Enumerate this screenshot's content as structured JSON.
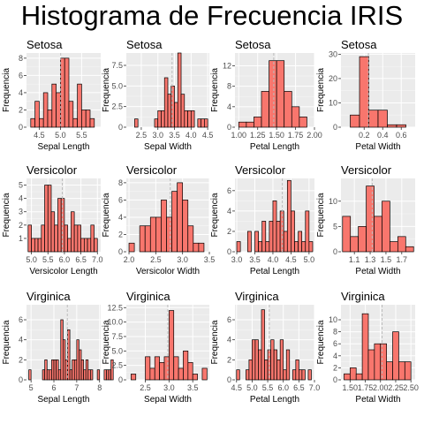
{
  "title": "Histograma de Frecuencia IRIS",
  "colors": {
    "bar_fill": "#F8766D",
    "bar_stroke": "#000000",
    "panel_bg": "#EBEBEB",
    "grid_major": "#FFFFFF",
    "grid_minor": "#F5F5F5",
    "mean_line": "#BBBBBB"
  },
  "chart_data": [
    {
      "type": "bar",
      "title": "Setosa",
      "xlabel": "Sepal Length",
      "ylabel": "Frequencia",
      "xlim": [
        4.2,
        5.95
      ],
      "ylim": [
        0,
        8.6
      ],
      "xticks": [
        {
          "v": 4.5,
          "label": "4.5"
        },
        {
          "v": 5.0,
          "label": "5.0"
        },
        {
          "v": 5.5,
          "label": "5.5"
        }
      ],
      "yticks": [
        {
          "v": 0,
          "label": "0"
        },
        {
          "v": 2,
          "label": "2"
        },
        {
          "v": 4,
          "label": "4"
        },
        {
          "v": 6,
          "label": "6"
        },
        {
          "v": 8,
          "label": "8"
        }
      ],
      "bin_start": 4.3,
      "bin_width": 0.1,
      "values": [
        1,
        3,
        1,
        4,
        2,
        5,
        4,
        8,
        8,
        3,
        1,
        5,
        2,
        2,
        1
      ],
      "mean": 5.006
    },
    {
      "type": "bar",
      "title": "Setosa",
      "xlabel": "Sepal Width",
      "ylabel": "Frequencia",
      "xlim": [
        2.05,
        4.55
      ],
      "ylim": [
        0,
        9
      ],
      "xticks": [
        {
          "v": 2.5,
          "label": "2.5"
        },
        {
          "v": 3.0,
          "label": "3.0"
        },
        {
          "v": 3.5,
          "label": "3.5"
        },
        {
          "v": 4.0,
          "label": "4.0"
        },
        {
          "v": 4.5,
          "label": "4.5"
        }
      ],
      "yticks": [
        {
          "v": 0,
          "label": "0"
        },
        {
          "v": 2.5,
          "label": "2.5"
        },
        {
          "v": 5.0,
          "label": "5.0"
        },
        {
          "v": 7.5,
          "label": "7.5"
        }
      ],
      "bin_start": 2.3,
      "bin_width": 0.1,
      "values": [
        1,
        0,
        0,
        0,
        0,
        0,
        1,
        2,
        2,
        6,
        4,
        5,
        3,
        9,
        4,
        2,
        2,
        2,
        0,
        1,
        1,
        1
      ],
      "mean": 3.428
    },
    {
      "type": "bar",
      "title": "Setosa",
      "xlabel": "Petal Length",
      "ylabel": "Frequencia",
      "xlim": [
        0.95,
        2.0
      ],
      "ylim": [
        0,
        14.5
      ],
      "xticks": [
        {
          "v": 1.0,
          "label": "1.00"
        },
        {
          "v": 1.25,
          "label": "1.25"
        },
        {
          "v": 1.5,
          "label": "1.50"
        },
        {
          "v": 1.75,
          "label": "1.75"
        },
        {
          "v": 2.0,
          "label": "2.00"
        }
      ],
      "yticks": [
        {
          "v": 0,
          "label": "0"
        },
        {
          "v": 4,
          "label": "4"
        },
        {
          "v": 8,
          "label": "8"
        },
        {
          "v": 12,
          "label": "12"
        }
      ],
      "bin_start": 1.0,
      "bin_width": 0.1,
      "values": [
        1,
        1,
        2,
        7,
        13,
        13,
        7,
        4,
        2
      ],
      "mean": 1.462
    },
    {
      "type": "bar",
      "title": "Setosa",
      "xlabel": "Petal Width",
      "ylabel": "Frequencia",
      "xlim": [
        -0.05,
        0.75
      ],
      "ylim": [
        0,
        30.5
      ],
      "xticks": [
        {
          "v": 0.2,
          "label": "0.2"
        },
        {
          "v": 0.4,
          "label": "0.4"
        },
        {
          "v": 0.6,
          "label": "0.6"
        }
      ],
      "yticks": [
        {
          "v": 0,
          "label": "0"
        },
        {
          "v": 10,
          "label": "10"
        },
        {
          "v": 20,
          "label": "20"
        },
        {
          "v": 30,
          "label": "30"
        }
      ],
      "bin_start": 0.05,
      "bin_width": 0.1,
      "values": [
        5,
        29,
        7,
        7,
        1,
        1
      ],
      "mean": 0.246
    },
    {
      "type": "bar",
      "title": "Versicolor",
      "xlabel": "Versicolor Length",
      "ylabel": "Frequencia",
      "xlim": [
        4.85,
        7.1
      ],
      "ylim": [
        0,
        5.5
      ],
      "xticks": [
        {
          "v": 5.0,
          "label": "5.0"
        },
        {
          "v": 5.5,
          "label": "5.5"
        },
        {
          "v": 6.0,
          "label": "6.0"
        },
        {
          "v": 6.5,
          "label": "6.5"
        },
        {
          "v": 7.0,
          "label": "7.0"
        }
      ],
      "yticks": [
        {
          "v": 1,
          "label": "1"
        },
        {
          "v": 2,
          "label": "2"
        },
        {
          "v": 3,
          "label": "3"
        },
        {
          "v": 4,
          "label": "4"
        },
        {
          "v": 5,
          "label": "5"
        }
      ],
      "bin_start": 4.9,
      "bin_width": 0.1,
      "values": [
        2,
        1,
        1,
        1,
        2,
        5,
        5,
        3,
        2,
        4,
        4,
        2,
        1,
        3,
        2,
        2,
        1,
        1,
        1,
        2,
        1
      ],
      "mean": 5.936
    },
    {
      "type": "bar",
      "title": "Versicolor",
      "xlabel": "Versicolor Width",
      "ylabel": "Frequencia",
      "xlim": [
        1.95,
        3.5
      ],
      "ylim": [
        0,
        8.5
      ],
      "xticks": [
        {
          "v": 2.0,
          "label": "2.0"
        },
        {
          "v": 2.5,
          "label": "2.5"
        },
        {
          "v": 3.0,
          "label": "3.0"
        },
        {
          "v": 3.5,
          "label": "3.5"
        }
      ],
      "yticks": [
        {
          "v": 0,
          "label": "0"
        },
        {
          "v": 2,
          "label": "2"
        },
        {
          "v": 4,
          "label": "4"
        },
        {
          "v": 6,
          "label": "6"
        },
        {
          "v": 8,
          "label": "8"
        }
      ],
      "bin_start": 2.0,
      "bin_width": 0.1,
      "values": [
        1,
        0,
        3,
        3,
        4,
        4,
        6,
        4,
        7,
        8,
        6,
        3,
        1,
        1
      ],
      "mean": 2.77
    },
    {
      "type": "bar",
      "title": "Versicolor",
      "xlabel": "Petal Length",
      "ylabel": "Frequencia",
      "xlim": [
        2.95,
        5.15
      ],
      "ylim": [
        0,
        7.2
      ],
      "xticks": [
        {
          "v": 3.0,
          "label": "3.0"
        },
        {
          "v": 3.5,
          "label": "3.5"
        },
        {
          "v": 4.0,
          "label": "4.0"
        },
        {
          "v": 4.5,
          "label": "4.5"
        },
        {
          "v": 5.0,
          "label": "5.0"
        }
      ],
      "yticks": [
        {
          "v": 0,
          "label": "0"
        },
        {
          "v": 2,
          "label": "2"
        },
        {
          "v": 4,
          "label": "4"
        },
        {
          "v": 6,
          "label": "6"
        }
      ],
      "bin_start": 3.0,
      "bin_width": 0.1,
      "values": [
        1,
        0,
        0,
        2,
        0,
        2,
        1,
        3,
        1,
        3,
        5,
        3,
        4,
        2,
        7,
        4,
        1,
        2,
        1,
        4,
        1
      ],
      "mean": 4.26
    },
    {
      "type": "bar",
      "title": "Versicolor",
      "xlabel": "Petal Width",
      "ylabel": "Frequencia",
      "xlim": [
        0.93,
        1.87
      ],
      "ylim": [
        0,
        14.5
      ],
      "xticks": [
        {
          "v": 1.1,
          "label": "1.1"
        },
        {
          "v": 1.3,
          "label": "1.3"
        },
        {
          "v": 1.5,
          "label": "1.5"
        },
        {
          "v": 1.7,
          "label": "1.7"
        }
      ],
      "yticks": [
        {
          "v": 0,
          "label": "0"
        },
        {
          "v": 5,
          "label": "5"
        },
        {
          "v": 10,
          "label": "10"
        }
      ],
      "bin_start": 0.95,
      "bin_width": 0.1,
      "values": [
        7,
        3,
        5,
        13,
        7,
        10,
        2,
        3,
        1
      ],
      "mean": 1.326
    },
    {
      "type": "bar",
      "title": "Virginica",
      "xlabel": "Sepal Length",
      "ylabel": "Frequencia",
      "xlim": [
        4.8,
        8.05
      ],
      "ylim": [
        0,
        7.5
      ],
      "xticks": [
        {
          "v": 5,
          "label": "5"
        },
        {
          "v": 6,
          "label": "6"
        },
        {
          "v": 7,
          "label": "7"
        },
        {
          "v": 8,
          "label": "8"
        }
      ],
      "yticks": [
        {
          "v": 0,
          "label": "0"
        },
        {
          "v": 2,
          "label": "2"
        },
        {
          "v": 4,
          "label": "4"
        },
        {
          "v": 6,
          "label": "6"
        }
      ],
      "bin_start": 4.9,
      "bin_width": 0.1,
      "values": [
        1,
        0,
        0,
        0,
        0,
        0,
        1,
        2,
        1,
        1,
        2,
        2,
        2,
        1,
        6,
        4,
        2,
        5,
        1,
        2,
        2,
        4,
        3,
        2,
        1,
        2,
        1,
        1,
        0,
        0,
        1,
        0,
        0,
        1,
        1,
        1,
        2
      ],
      "mean": 6.588
    },
    {
      "type": "bar",
      "title": "Virginica",
      "xlabel": "Sepal Width",
      "ylabel": "Frequencia",
      "xlim": [
        2.1,
        3.85
      ],
      "ylim": [
        0,
        13
      ],
      "xticks": [
        {
          "v": 2.5,
          "label": "2.5"
        },
        {
          "v": 3.0,
          "label": "3.0"
        },
        {
          "v": 3.5,
          "label": "3.5"
        }
      ],
      "yticks": [
        {
          "v": 0,
          "label": "0"
        },
        {
          "v": 2.5,
          "label": "2.5"
        },
        {
          "v": 5.0,
          "label": "5.0"
        },
        {
          "v": 7.5,
          "label": "7.5"
        },
        {
          "v": 10.0,
          "label": "10.0"
        },
        {
          "v": 12.5,
          "label": "12.5"
        }
      ],
      "bin_start": 2.2,
      "bin_width": 0.1,
      "values": [
        1,
        0,
        0,
        4,
        2,
        4,
        3,
        4,
        12,
        4,
        2,
        5,
        3,
        1,
        0,
        2
      ],
      "mean": 2.974
    },
    {
      "type": "bar",
      "title": "Virginica",
      "xlabel": "Petal Length",
      "ylabel": "Frequencia",
      "xlim": [
        4.45,
        7.0
      ],
      "ylim": [
        0,
        7.5
      ],
      "xticks": [
        {
          "v": 4.5,
          "label": "4.5"
        },
        {
          "v": 5.0,
          "label": "5.0"
        },
        {
          "v": 5.5,
          "label": "5.5"
        },
        {
          "v": 6.0,
          "label": "6.0"
        },
        {
          "v": 6.5,
          "label": "6.5"
        },
        {
          "v": 7.0,
          "label": "7.0"
        }
      ],
      "yticks": [
        {
          "v": 0,
          "label": "0"
        },
        {
          "v": 2,
          "label": "2"
        },
        {
          "v": 4,
          "label": "4"
        },
        {
          "v": 6,
          "label": "6"
        }
      ],
      "bin_start": 4.5,
      "bin_width": 0.1,
      "values": [
        1,
        0,
        0,
        1,
        2,
        4,
        4,
        3,
        7,
        2,
        3,
        4,
        3,
        2,
        4,
        1,
        3,
        0,
        1,
        2,
        1,
        1,
        0,
        1
      ],
      "mean": 5.552
    },
    {
      "type": "bar",
      "title": "Virginica",
      "xlabel": "Petal Width",
      "ylabel": "Frequencia",
      "xlim": [
        1.35,
        2.57
      ],
      "ylim": [
        0,
        12.5
      ],
      "xticks": [
        {
          "v": 1.5,
          "label": "1.50"
        },
        {
          "v": 1.75,
          "label": "1.75"
        },
        {
          "v": 2.0,
          "label": "2.00"
        },
        {
          "v": 2.25,
          "label": "2.25"
        },
        {
          "v": 2.5,
          "label": "2.50"
        }
      ],
      "yticks": [
        {
          "v": 0,
          "label": "0"
        },
        {
          "v": 2,
          "label": "2"
        },
        {
          "v": 4,
          "label": "4"
        },
        {
          "v": 6,
          "label": "6"
        },
        {
          "v": 8,
          "label": "8"
        },
        {
          "v": 10,
          "label": "10"
        }
      ],
      "bin_start": 1.4,
      "bin_width": 0.1,
      "values": [
        1,
        2,
        1,
        11,
        5,
        6,
        6,
        3,
        8,
        3,
        3
      ],
      "mean": 2.026
    }
  ]
}
